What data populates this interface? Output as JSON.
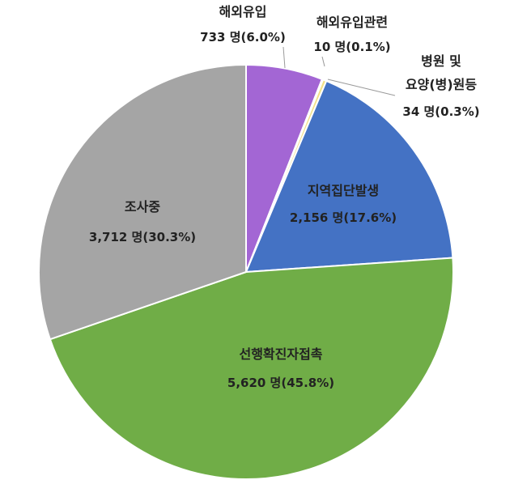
{
  "chart_data": {
    "type": "pie",
    "unit": "명",
    "slices": [
      {
        "name": "해외유입",
        "value": 733,
        "percent": 6.0,
        "value_text": "733 명(6.0%)",
        "color": "#A366D4"
      },
      {
        "name": "해외유입관련",
        "value": 10,
        "percent": 0.1,
        "value_text": "10 명(0.1%)",
        "color": "#F0A14A"
      },
      {
        "name": "병원 및 요양(병)원등",
        "name_lines": [
          "병원 및",
          "요양(병)원등"
        ],
        "value": 34,
        "percent": 0.3,
        "value_text": "34 명(0.3%)",
        "color": "#F2E18A"
      },
      {
        "name": "지역집단발생",
        "value": 2156,
        "percent": 17.6,
        "value_text": "2,156 명(17.6%)",
        "color": "#4472C4"
      },
      {
        "name": "선행확진자접촉",
        "value": 5620,
        "percent": 45.8,
        "value_text": "5,620 명(45.8%)",
        "color": "#70AD47"
      },
      {
        "name": "조사중",
        "value": 3712,
        "percent": 30.3,
        "value_text": "3,712 명(30.3%)",
        "color": "#A5A5A5"
      }
    ]
  }
}
